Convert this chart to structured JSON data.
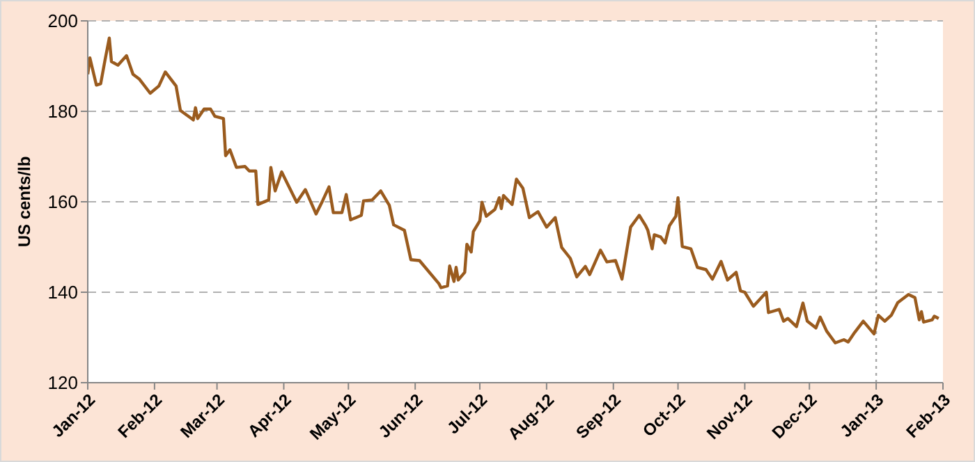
{
  "chart_data": {
    "type": "line",
    "ylabel": "US cents/lb",
    "x": [
      "2012-01-01",
      "2012-01-02",
      "2012-01-05",
      "2012-01-07",
      "2012-01-09",
      "2012-01-11",
      "2012-01-12",
      "2012-01-15",
      "2012-01-19",
      "2012-01-22",
      "2012-01-25",
      "2012-01-30",
      "2012-02-03",
      "2012-02-06",
      "2012-02-11",
      "2012-02-13",
      "2012-02-19",
      "2012-02-20",
      "2012-02-21",
      "2012-02-24",
      "2012-02-27",
      "2012-02-29",
      "2012-03-04",
      "2012-03-05",
      "2012-03-07",
      "2012-03-10",
      "2012-03-14",
      "2012-03-16",
      "2012-03-19",
      "2012-03-20",
      "2012-03-25",
      "2012-03-26",
      "2012-03-28",
      "2012-03-31",
      "2012-04-07",
      "2012-04-11",
      "2012-04-16",
      "2012-04-19",
      "2012-04-22",
      "2012-04-24",
      "2012-04-28",
      "2012-04-30",
      "2012-05-02",
      "2012-05-07",
      "2012-05-08",
      "2012-05-12",
      "2012-05-16",
      "2012-05-20",
      "2012-05-22",
      "2012-05-27",
      "2012-05-30",
      "2012-06-03",
      "2012-06-12",
      "2012-06-13",
      "2012-06-16",
      "2012-06-17",
      "2012-06-19",
      "2012-06-20",
      "2012-06-21",
      "2012-06-24",
      "2012-06-25",
      "2012-06-27",
      "2012-06-28",
      "2012-07-01",
      "2012-07-02",
      "2012-07-04",
      "2012-07-08",
      "2012-07-10",
      "2012-07-11",
      "2012-07-12",
      "2012-07-16",
      "2012-07-18",
      "2012-07-21",
      "2012-07-24",
      "2012-07-28",
      "2012-08-01",
      "2012-08-05",
      "2012-08-08",
      "2012-08-12",
      "2012-08-15",
      "2012-08-19",
      "2012-08-21",
      "2012-08-26",
      "2012-08-29",
      "2012-09-02",
      "2012-09-05",
      "2012-09-09",
      "2012-09-13",
      "2012-09-16",
      "2012-09-17",
      "2012-09-19",
      "2012-09-20",
      "2012-09-23",
      "2012-09-25",
      "2012-09-27",
      "2012-09-30",
      "2012-10-01",
      "2012-10-03",
      "2012-10-07",
      "2012-10-10",
      "2012-10-14",
      "2012-10-17",
      "2012-10-21",
      "2012-10-24",
      "2012-10-28",
      "2012-10-30",
      "2012-11-01",
      "2012-11-05",
      "2012-11-11",
      "2012-11-12",
      "2012-11-17",
      "2012-11-19",
      "2012-11-21",
      "2012-11-25",
      "2012-11-28",
      "2012-11-30",
      "2012-12-04",
      "2012-12-06",
      "2012-12-09",
      "2012-12-13",
      "2012-12-17",
      "2012-12-19",
      "2012-12-22",
      "2012-12-26",
      "2012-12-31",
      "2013-01-02",
      "2013-01-05",
      "2013-01-08",
      "2013-01-11",
      "2013-01-16",
      "2013-01-19",
      "2013-01-21",
      "2013-01-22",
      "2013-01-23",
      "2013-01-27",
      "2013-01-28",
      "2013-01-30"
    ],
    "series": [
      {
        "color": "#9a5b1e",
        "values": [
          188.2,
          191.8,
          185.8,
          186.1,
          191.3,
          196.2,
          191,
          190.2,
          192.3,
          188.2,
          187.1,
          184,
          185.6,
          188.7,
          185.6,
          180.2,
          178.1,
          180.8,
          178.4,
          180.5,
          180.5,
          178.9,
          178.4,
          170.2,
          171.5,
          167.6,
          167.8,
          166.8,
          166.8,
          159.4,
          160.4,
          167.6,
          162.4,
          166.6,
          159.9,
          162.7,
          157.3,
          160.2,
          163.3,
          157.6,
          157.6,
          161.6,
          156,
          157,
          160.2,
          160.4,
          162.4,
          159.2,
          154.9,
          153.7,
          147.2,
          147,
          141.9,
          141,
          141.4,
          145.8,
          142.4,
          145.5,
          142.7,
          144.4,
          150.6,
          148.9,
          153.4,
          155.8,
          159.9,
          156.8,
          158.3,
          160.9,
          158.5,
          161.4,
          159.4,
          165,
          163,
          156.5,
          157.8,
          154.4,
          156.5,
          149.9,
          147.5,
          143.4,
          145.7,
          143.9,
          149.3,
          146.7,
          147,
          142.9,
          154.4,
          157,
          154.7,
          153.7,
          149.6,
          152.7,
          152.2,
          150.9,
          154.7,
          156.8,
          160.9,
          150.1,
          149.6,
          145.5,
          145,
          142.9,
          146.8,
          142.7,
          144.4,
          140.3,
          140,
          136.9,
          140,
          135.5,
          136.2,
          133.6,
          134.2,
          132.4,
          137.6,
          133.6,
          132.1,
          134.5,
          131.4,
          128.8,
          129.5,
          129,
          131.1,
          133.6,
          130.8,
          134.9,
          133.6,
          134.9,
          137.7,
          139.5,
          138.8,
          133.9,
          135.7,
          133.4,
          133.9,
          134.7,
          134.2
        ]
      }
    ],
    "xlim": [
      "2012-01-01",
      "2013-02-01"
    ],
    "xticks": [
      {
        "value": "2012-01-01",
        "label": "Jan-12"
      },
      {
        "value": "2012-02-01",
        "label": "Feb-12"
      },
      {
        "value": "2012-03-01",
        "label": "Mar-12"
      },
      {
        "value": "2012-04-01",
        "label": "Apr-12"
      },
      {
        "value": "2012-05-01",
        "label": "May-12"
      },
      {
        "value": "2012-06-01",
        "label": "Jun-12"
      },
      {
        "value": "2012-07-01",
        "label": "Jul-12"
      },
      {
        "value": "2012-08-01",
        "label": "Aug-12"
      },
      {
        "value": "2012-09-01",
        "label": "Sep-12"
      },
      {
        "value": "2012-10-01",
        "label": "Oct-12"
      },
      {
        "value": "2012-11-01",
        "label": "Nov-12"
      },
      {
        "value": "2012-12-01",
        "label": "Dec-12"
      },
      {
        "value": "2013-01-01",
        "label": "Jan-13"
      },
      {
        "value": "2013-02-01",
        "label": "Feb-13"
      }
    ],
    "ylim": [
      120,
      200
    ],
    "yticks": [
      120,
      140,
      160,
      180,
      200
    ],
    "grid": "y",
    "ref_lines": [
      {
        "axis": "x",
        "value": "2013-01-01",
        "color": "#a6a6a6",
        "line_style": "dotted"
      }
    ]
  }
}
